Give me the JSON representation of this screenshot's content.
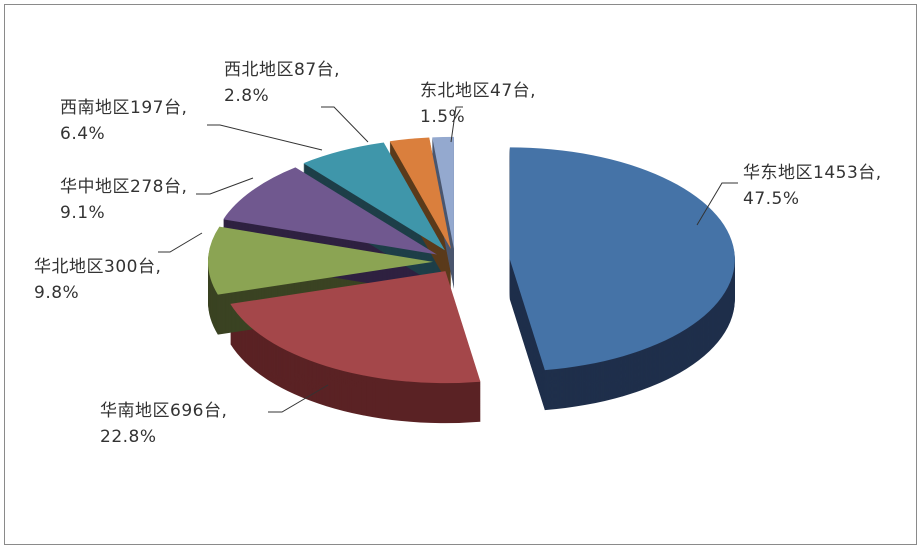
{
  "chart_data": {
    "type": "pie",
    "style": "3d-exploded",
    "title": "",
    "unit": "台",
    "slices": [
      {
        "name": "华东地区",
        "value": 1453,
        "percent": 47.5,
        "label": "华东地区1453台,",
        "pct_label": "47.5%",
        "color": "#4573A7",
        "side": "#1F2F4B"
      },
      {
        "name": "华南地区",
        "value": 696,
        "percent": 22.8,
        "label": "华南地区696台,",
        "pct_label": "22.8%",
        "color": "#A4474A",
        "side": "#5A2224"
      },
      {
        "name": "华北地区",
        "value": 300,
        "percent": 9.8,
        "label": "华北地区300台,",
        "pct_label": "9.8%",
        "color": "#8BA453",
        "side": "#3A4322"
      },
      {
        "name": "华中地区",
        "value": 278,
        "percent": 9.1,
        "label": "华中地区278台,",
        "pct_label": "9.1%",
        "color": "#70588F",
        "side": "#2E2140"
      },
      {
        "name": "西南地区",
        "value": 197,
        "percent": 6.4,
        "label": "西南地区197台,",
        "pct_label": "6.4%",
        "color": "#3F96AA",
        "side": "#1E3F48"
      },
      {
        "name": "西北地区",
        "value": 87,
        "percent": 2.8,
        "label": "西北地区87台,",
        "pct_label": "2.8%",
        "color": "#DA7F3D",
        "side": "#5A3A1B"
      },
      {
        "name": "东北地区",
        "value": 47,
        "percent": 1.5,
        "label": "东北地区47台,",
        "pct_label": "1.5%",
        "color": "#94A9CF",
        "side": "#4B5770"
      }
    ]
  }
}
